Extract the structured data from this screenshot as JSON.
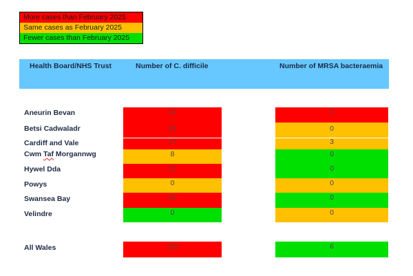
{
  "legend": [
    {
      "label": "More cases than February 2025",
      "color": "#ff0000"
    },
    {
      "label": "Same cases as February 2025",
      "color": "#ffc000"
    },
    {
      "label": "Fewer cases than February 2025",
      "color": "#00e000"
    }
  ],
  "headers": {
    "board": "Health Board/NHS Trust",
    "cdiff": "Number of C. difficile",
    "mrsa": "Number of MRSA bacteraemia"
  },
  "rows": [
    {
      "name": "Aneurin Bevan",
      "cdiff": "21",
      "cdiff_status": "more",
      "mrsa": "3",
      "mrsa_status": "more"
    },
    {
      "name": "Betsi Cadwaladr",
      "cdiff": "39",
      "cdiff_status": "more",
      "mrsa": "0",
      "mrsa_status": "same"
    },
    {
      "name": "Cardiff and Vale",
      "cdiff": "17",
      "cdiff_status": "more",
      "mrsa": "3",
      "mrsa_status": "same"
    },
    {
      "name": "Cwm Taf Morgannwg",
      "cdiff": "8",
      "cdiff_status": "same",
      "mrsa": "0",
      "mrsa_status": "fewer"
    },
    {
      "name": "Hywel Dda",
      "cdiff": "11",
      "cdiff_status": "more",
      "mrsa": "0",
      "mrsa_status": "fewer"
    },
    {
      "name": "Powys",
      "cdiff": "0",
      "cdiff_status": "same",
      "mrsa": "0",
      "mrsa_status": "same"
    },
    {
      "name": "Swansea Bay",
      "cdiff": "22",
      "cdiff_status": "more",
      "mrsa": "0",
      "mrsa_status": "fewer"
    },
    {
      "name": "Velindre",
      "cdiff": "0",
      "cdiff_status": "fewer",
      "mrsa": "0",
      "mrsa_status": "same"
    }
  ],
  "total": {
    "name": "All Wales",
    "cdiff": "118",
    "cdiff_status": "more",
    "mrsa": "6",
    "mrsa_status": "fewer"
  },
  "status_colors": {
    "more": "#ff0000",
    "same": "#ffc000",
    "fewer": "#00e000"
  }
}
